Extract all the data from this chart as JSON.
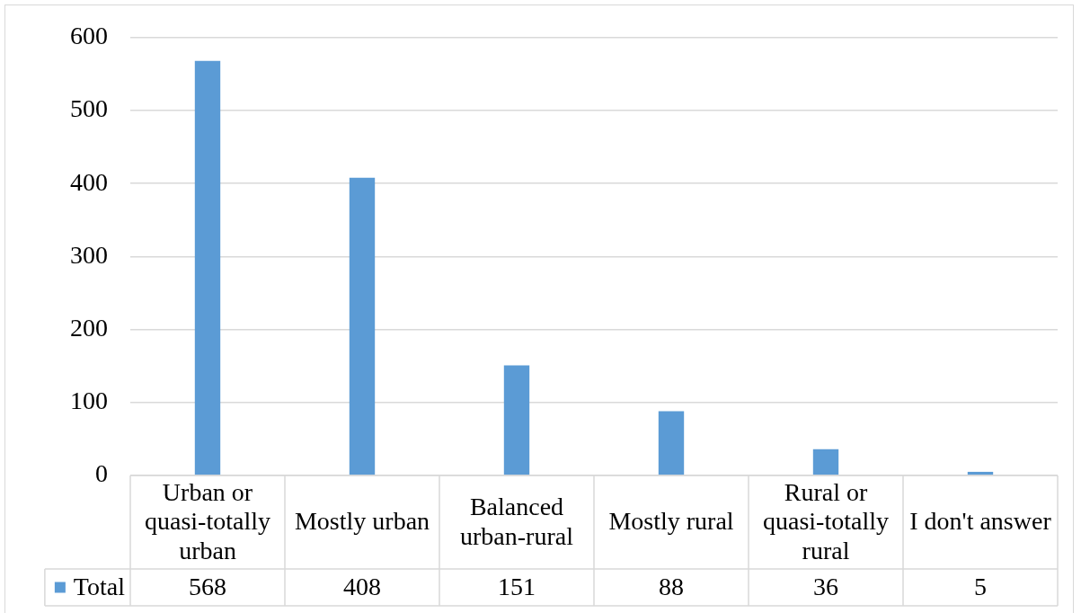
{
  "chart_data": {
    "type": "bar",
    "categories": [
      "Urban or quasi-totally urban",
      "Mostly urban",
      "Balanced urban-rural",
      "Mostly rural",
      "Rural or quasi-totally rural",
      "I don't answer"
    ],
    "series": [
      {
        "name": "Total",
        "color": "#5b9bd5",
        "values": [
          568,
          408,
          151,
          88,
          36,
          5
        ]
      }
    ],
    "ylim": [
      0,
      600
    ],
    "yticks": [
      0,
      100,
      200,
      300,
      400,
      500,
      600
    ],
    "grid": "y",
    "legend": "bottom left",
    "data_labels": true
  }
}
